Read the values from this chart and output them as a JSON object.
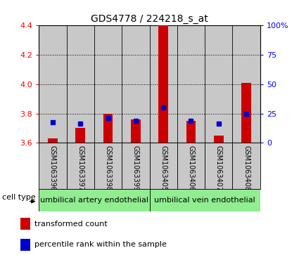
{
  "title": "GDS4778 / 224218_s_at",
  "samples": [
    "GSM1063396",
    "GSM1063397",
    "GSM1063398",
    "GSM1063399",
    "GSM1063405",
    "GSM1063406",
    "GSM1063407",
    "GSM1063408"
  ],
  "red_values": [
    3.63,
    3.7,
    3.8,
    3.76,
    4.4,
    3.75,
    3.65,
    4.01
  ],
  "blue_values": [
    3.74,
    3.73,
    3.77,
    3.75,
    3.84,
    3.75,
    3.73,
    3.8
  ],
  "ylim_left": [
    3.6,
    4.4
  ],
  "yticks_left": [
    3.6,
    3.8,
    4.0,
    4.2,
    4.4
  ],
  "yticks_right": [
    0,
    25,
    50,
    75,
    100
  ],
  "ytick_labels_right": [
    "0",
    "25",
    "50",
    "75",
    "100%"
  ],
  "bar_base": 3.6,
  "bar_width": 0.35,
  "red_color": "#CC0000",
  "blue_color": "#0000CC",
  "bar_bg_color": "#C8C8C8",
  "cell_type_bg": "#90EE90",
  "group1_label": "umbilical artery endothelial",
  "group2_label": "umbilical vein endothelial",
  "cell_type_label": "cell type",
  "legend_red": "transformed count",
  "legend_blue": "percentile rank within the sample",
  "title_fontsize": 10,
  "tick_fontsize": 8,
  "sample_fontsize": 7,
  "cell_fontsize": 8,
  "legend_fontsize": 8
}
